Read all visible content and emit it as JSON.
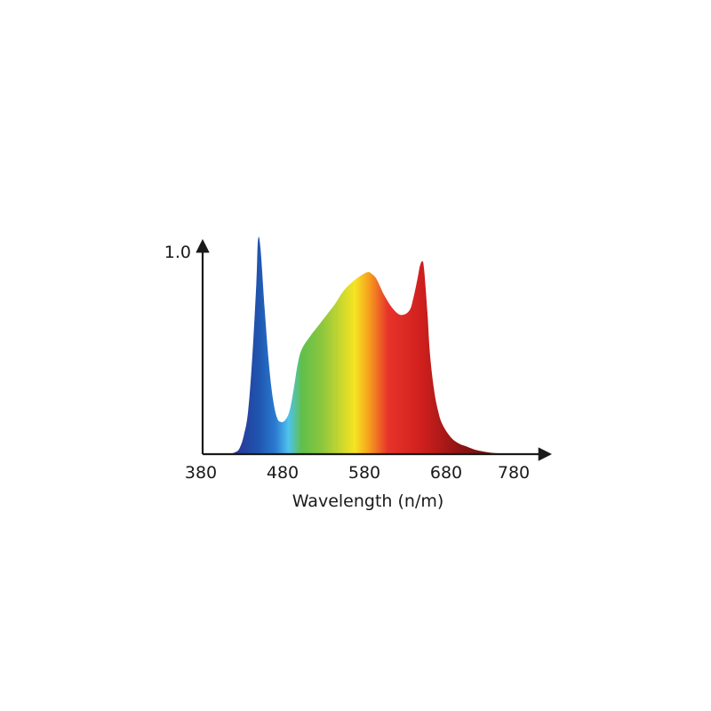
{
  "chart_data": {
    "type": "area",
    "title": "",
    "xlabel": "Wavelength (n/m)",
    "ylabel": "",
    "xlim": [
      380,
      780
    ],
    "ylim": [
      0,
      1.0
    ],
    "x_ticks": [
      "380",
      "480",
      "580",
      "680",
      "780"
    ],
    "y_ticks": [
      "1.0"
    ],
    "grid": false,
    "legend": "none",
    "fill": "visible spectrum color gradient",
    "x": [
      380,
      390,
      400,
      410,
      420,
      425,
      430,
      435,
      440,
      445,
      447,
      450,
      455,
      460,
      465,
      470,
      475,
      480,
      485,
      490,
      495,
      500,
      510,
      520,
      530,
      540,
      550,
      560,
      570,
      580,
      585,
      590,
      595,
      600,
      610,
      620,
      630,
      635,
      640,
      643,
      646,
      648,
      652,
      655,
      660,
      665,
      670,
      680,
      690,
      700,
      710,
      720,
      730,
      740,
      750,
      760,
      780
    ],
    "y": [
      0,
      0,
      0,
      0,
      0.01,
      0.03,
      0.09,
      0.2,
      0.45,
      0.8,
      1.0,
      0.96,
      0.68,
      0.43,
      0.26,
      0.17,
      0.15,
      0.16,
      0.2,
      0.3,
      0.42,
      0.49,
      0.55,
      0.6,
      0.65,
      0.7,
      0.76,
      0.8,
      0.83,
      0.85,
      0.84,
      0.82,
      0.78,
      0.74,
      0.68,
      0.65,
      0.67,
      0.73,
      0.82,
      0.88,
      0.9,
      0.86,
      0.66,
      0.47,
      0.3,
      0.2,
      0.14,
      0.08,
      0.05,
      0.035,
      0.02,
      0.012,
      0.006,
      0.003,
      0,
      0,
      0
    ],
    "colors": {
      "axis": "#1a1a1a",
      "spectrum": [
        "#2a2f8f",
        "#1f55b0",
        "#2b7ad0",
        "#4fc3ee",
        "#5fbf4a",
        "#8cc63f",
        "#f6e423",
        "#f7a51e",
        "#e7342a",
        "#d0201e",
        "#8d1412",
        "#5a0b0a"
      ]
    }
  }
}
